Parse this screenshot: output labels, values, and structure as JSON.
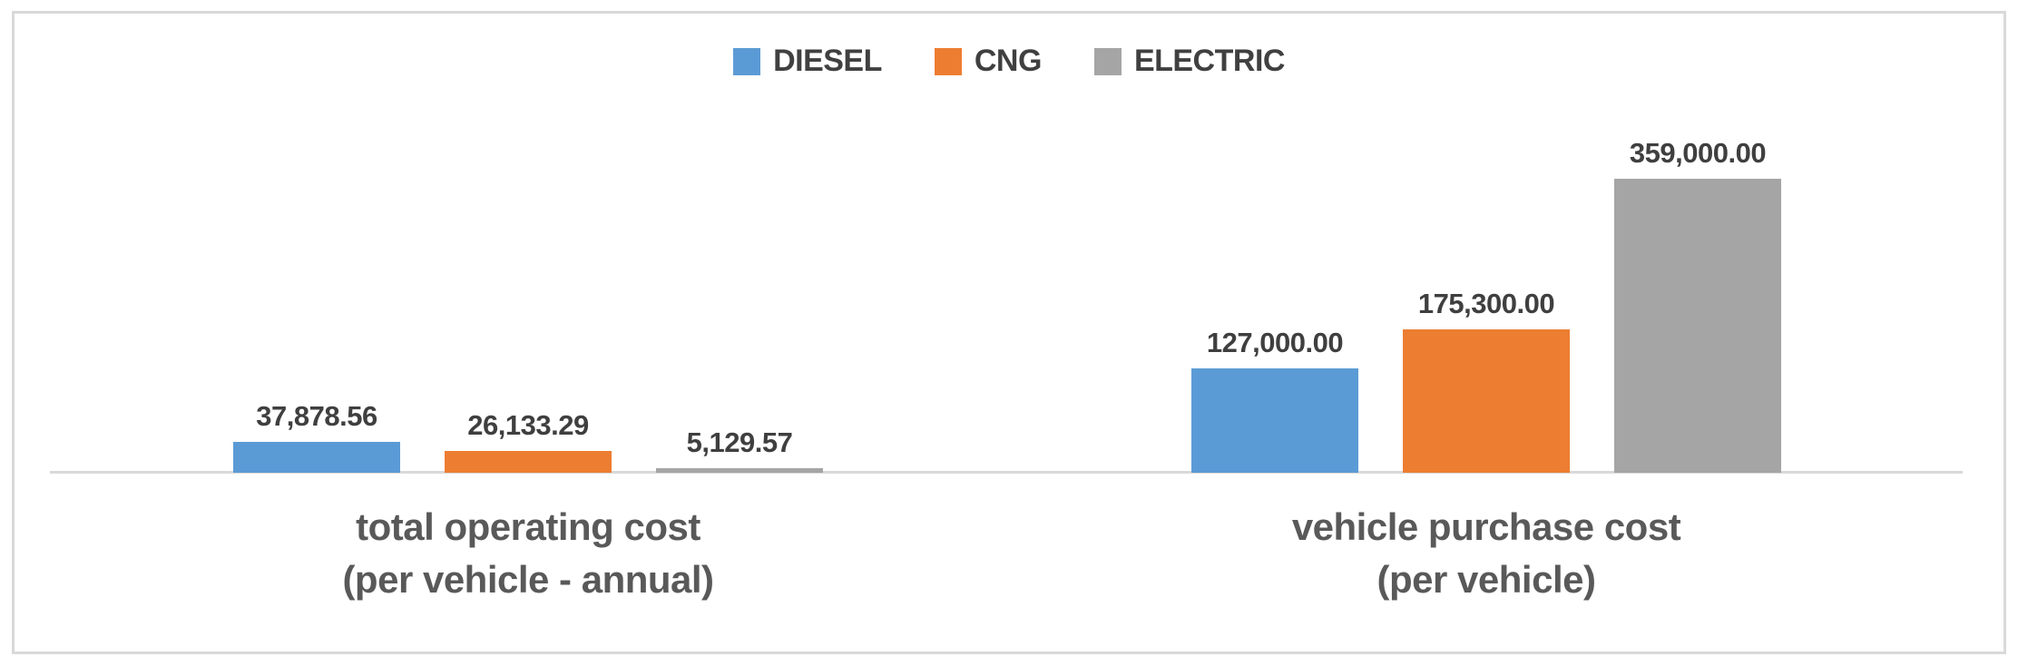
{
  "legend": {
    "items": [
      {
        "label": "DIESEL",
        "color": "#5B9BD5"
      },
      {
        "label": "CNG",
        "color": "#ED7D31"
      },
      {
        "label": "ELECTRIC",
        "color": "#A5A5A5"
      }
    ]
  },
  "x_axis": {
    "categories": [
      {
        "line1": "total operating cost",
        "line2": "(per vehicle - annual)"
      },
      {
        "line1": "vehicle purchase cost",
        "line2": "(per vehicle)"
      }
    ]
  },
  "chart_data": {
    "type": "bar",
    "title": "",
    "xlabel": "",
    "ylabel": "",
    "categories": [
      "total operating cost (per vehicle - annual)",
      "vehicle purchase cost (per vehicle)"
    ],
    "series": [
      {
        "name": "DIESEL",
        "color": "#5B9BD5",
        "values": [
          37878.56,
          127000.0
        ],
        "display": [
          "37,878.56",
          "127,000.00"
        ]
      },
      {
        "name": "CNG",
        "color": "#ED7D31",
        "values": [
          26133.29,
          175300.0
        ],
        "display": [
          "26,133.29",
          "175,300.00"
        ]
      },
      {
        "name": "ELECTRIC",
        "color": "#A5A5A5",
        "values": [
          5129.57,
          359000.0
        ],
        "display": [
          "5,129.57",
          "359,000.00"
        ]
      }
    ],
    "ylim": [
      0,
      359000
    ],
    "y_axis_visible": false,
    "grid": false,
    "legend_position": "top",
    "data_labels": true
  },
  "colors": {
    "axis_line": "#D9D9D9",
    "border": "#D9D9D9",
    "data_label_text": "#3F3F3F",
    "category_label_text": "#595959",
    "legend_text": "#404040",
    "background": "#FFFFFF"
  }
}
